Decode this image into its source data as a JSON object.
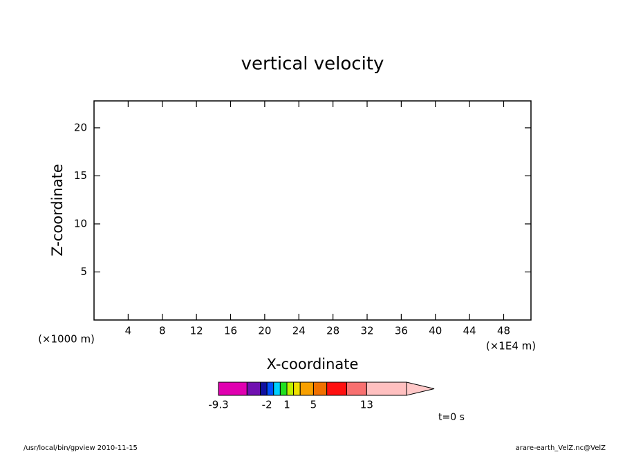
{
  "chart_data": {
    "type": "contour",
    "title": "vertical velocity",
    "xlabel": "X-coordinate",
    "ylabel": "Z-coordinate",
    "xunit": "(×1E4 m)",
    "yunit": "(×1000 m)",
    "xlim": [
      0,
      51.2
    ],
    "xticks": [
      4,
      8,
      12,
      16,
      20,
      24,
      28,
      32,
      36,
      40,
      44,
      48
    ],
    "ylim": [
      0,
      22.8
    ],
    "yticks": [
      5,
      10,
      15,
      20
    ],
    "colorbar": {
      "levels": [
        -9.3,
        -5,
        -3,
        -2,
        -1,
        0,
        1,
        2,
        3,
        5,
        7,
        10,
        13,
        19
      ],
      "colors": [
        "#e000b0",
        "#7010b0",
        "#1010a0",
        "#0050ff",
        "#00d0ff",
        "#20e020",
        "#c0f000",
        "#f0e000",
        "#f8a000",
        "#f07000",
        "#ff1010",
        "#f87070",
        "#ffc0c0"
      ],
      "extend_color": "#ffc8c8",
      "ticks": [
        -9.3,
        -2,
        1,
        5,
        13
      ]
    },
    "annotation": "t=0 s",
    "footer_left": "/usr/local/bin/gpview   2010-11-15",
    "footer_right": "arare-earth_VelZ.nc@VelZ"
  }
}
